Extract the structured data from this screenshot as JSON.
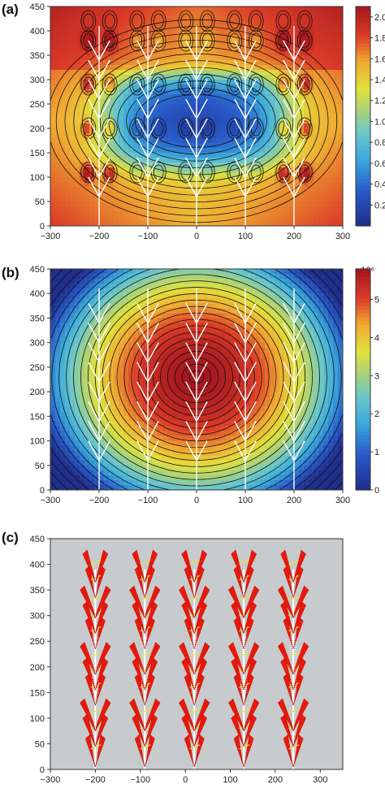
{
  "panels": [
    {
      "label": "(a)",
      "chart_data": {
        "type": "heatmap",
        "x_range": [
          -300,
          300
        ],
        "y_range": [
          0,
          450
        ],
        "x_ticks": [
          -300,
          -200,
          -100,
          0,
          100,
          200,
          300
        ],
        "y_ticks": [
          0,
          50,
          100,
          150,
          200,
          250,
          300,
          350,
          400,
          450
        ],
        "colorbar_ticks": [
          0.2,
          0.4,
          0.6,
          0.8,
          1.0,
          1.2,
          1.4,
          1.6,
          1.8,
          2.0
        ],
        "colorbar_range": [
          0,
          2.1
        ],
        "colormap": "blue-cyan-yellow-red",
        "plant_x": [
          -200,
          -100,
          0,
          100,
          200
        ],
        "plant_top": 410
      }
    },
    {
      "label": "(b)",
      "chart_data": {
        "type": "heatmap",
        "x_range": [
          -300,
          300
        ],
        "y_range": [
          0,
          450
        ],
        "x_ticks": [
          -300,
          -200,
          -100,
          0,
          100,
          200,
          300
        ],
        "y_ticks": [
          0,
          50,
          100,
          150,
          200,
          250,
          300,
          350,
          400,
          450
        ],
        "colorbar_ticks": [
          0,
          1,
          2,
          3,
          4,
          5
        ],
        "colorbar_range": [
          0,
          5.8
        ],
        "colorbar_multiplier": "×10⁶",
        "colormap": "blue-cyan-yellow-red",
        "plant_x": [
          -200,
          -100,
          0,
          100,
          200
        ],
        "plant_top": 410
      }
    },
    {
      "label": "(c)",
      "chart_data": {
        "type": "scatter",
        "x_range": [
          -300,
          350
        ],
        "y_range": [
          0,
          450
        ],
        "x_ticks": [
          -300,
          -200,
          -100,
          0,
          100,
          200,
          300
        ],
        "y_ticks": [
          0,
          50,
          100,
          150,
          200,
          250,
          300,
          350,
          400,
          450
        ],
        "background": "#c8cbcd",
        "leaf_color": "#e8190c",
        "highlight_color": "#f5e11a",
        "plant_x": [
          -200,
          -90,
          20,
          130,
          240
        ],
        "plant_top": 420
      }
    }
  ]
}
